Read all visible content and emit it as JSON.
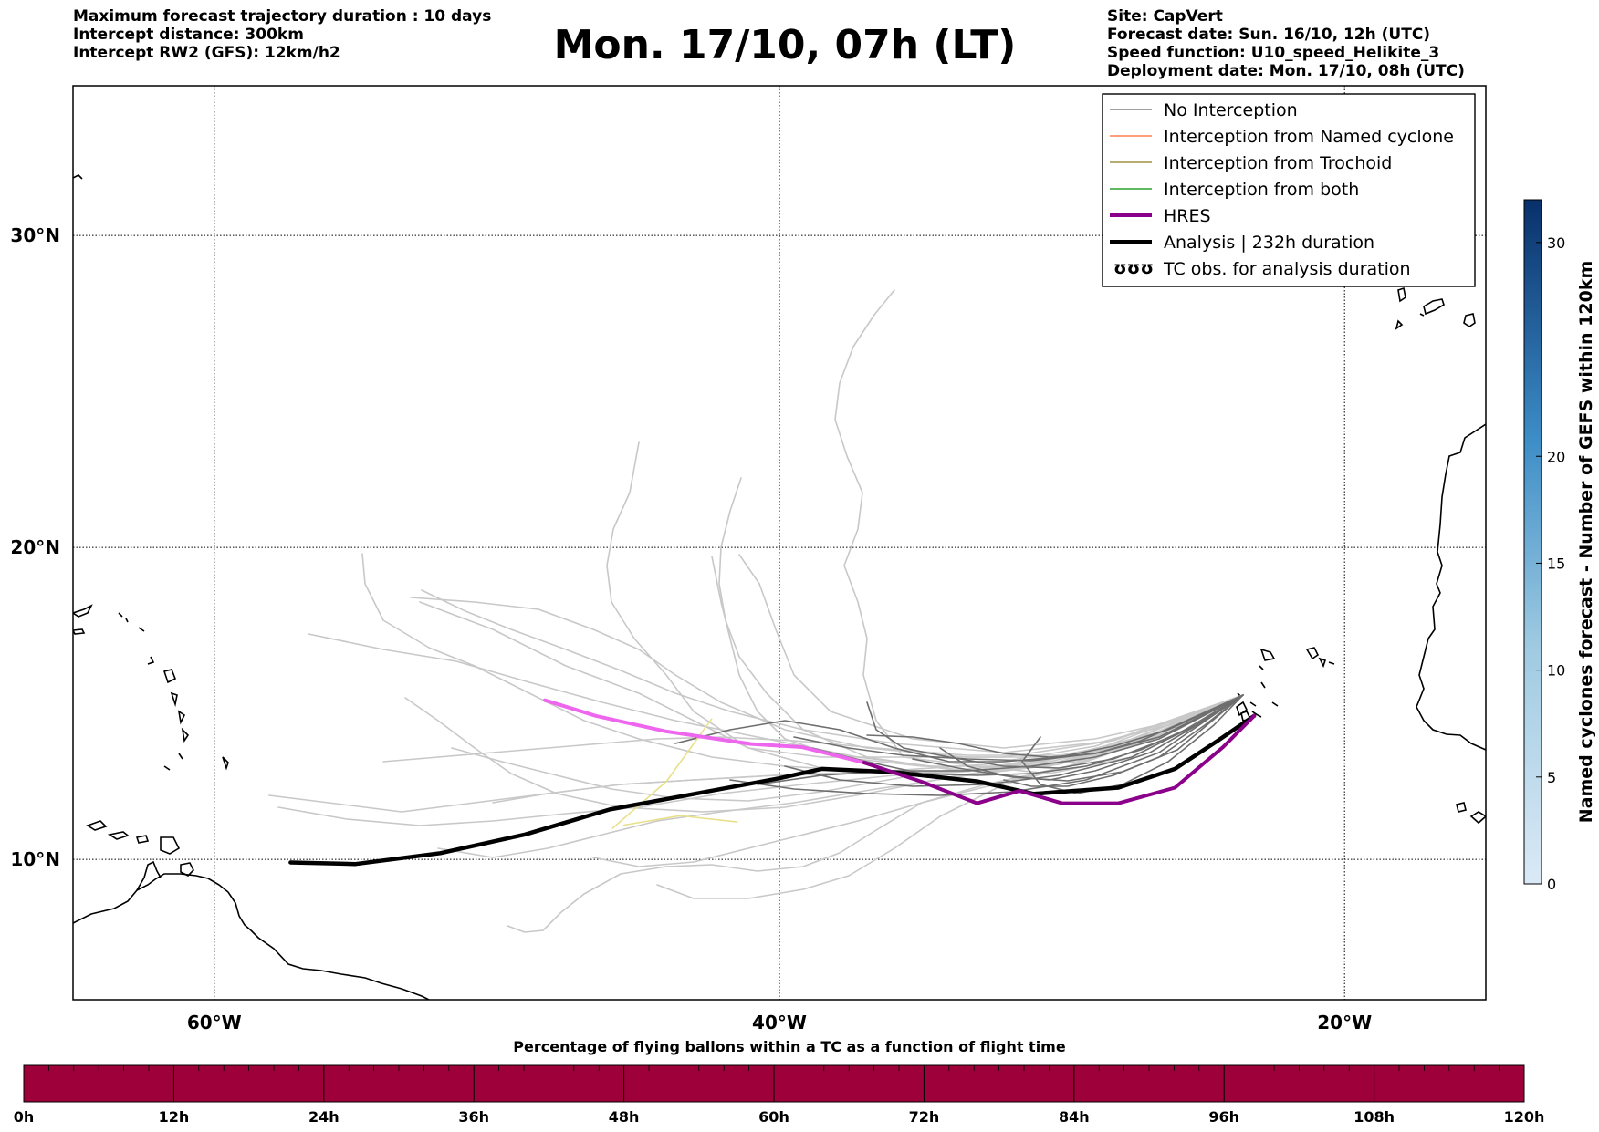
{
  "header": {
    "left_lines": [
      "Maximum forecast trajectory duration : 10 days",
      "Intercept distance: 300km",
      "Intercept RW2 (GFS):  12km/h2"
    ],
    "title": "Mon. 17/10, 07h (LT)",
    "right_lines": [
      "Site: CapVert",
      "Forecast date: Sun. 16/10, 12h (UTC)",
      "Speed function: U10_speed_Helikite_3",
      "Deployment date: Mon. 17/10, 08h (UTC)"
    ]
  },
  "map": {
    "lon_range": [
      -65,
      -15
    ],
    "lat_range": [
      5.5,
      34.8
    ],
    "lat_labels": [
      {
        "lat": 30,
        "text": "30°N"
      },
      {
        "lat": 20,
        "text": "20°N"
      },
      {
        "lat": 10,
        "text": "10°N"
      }
    ],
    "lon_labels": [
      {
        "lon": -60,
        "text": "60°W"
      },
      {
        "lon": -40,
        "text": "40°W"
      },
      {
        "lon": -20,
        "text": "20°W"
      }
    ],
    "grid": true
  },
  "legend": {
    "items": [
      {
        "label": "No Interception",
        "color": "#808080",
        "style": "thin"
      },
      {
        "label": "Interception from Named cyclone",
        "color": "#ff7f50",
        "style": "thin"
      },
      {
        "label": "Interception from Trochoid",
        "color": "#a09040",
        "style": "thin"
      },
      {
        "label": "Interception from both",
        "color": "#2ca02c",
        "style": "thin"
      },
      {
        "label": "HRES",
        "color": "#8b008b",
        "style": "thick"
      },
      {
        "label": "Analysis | 232h duration",
        "color": "#000000",
        "style": "thick"
      },
      {
        "label": "TC obs. for analysis duration",
        "color": "#000000",
        "style": "symbol",
        "symbol": "ʊʊʊ"
      }
    ]
  },
  "colorbar_right": {
    "label": "Named cyclones forecast - Number of GEFS within 120km",
    "ticks": [
      "0",
      "5",
      "10",
      "15",
      "20",
      "30"
    ],
    "tick_values": [
      0,
      5,
      10,
      15,
      20,
      30
    ],
    "max": 32,
    "color_low": "#dbe9f6",
    "color_high": "#08306b"
  },
  "colorbar_bottom": {
    "title": "Percentage of flying ballons within a TC as a function of flight time",
    "ticks": [
      "0h",
      "12h",
      "24h",
      "36h",
      "48h",
      "60h",
      "72h",
      "84h",
      "96h",
      "108h",
      "120h"
    ],
    "fill_color": "#9e003a"
  },
  "tracks": {
    "analysis": [
      [
        -57.3,
        9.9
      ],
      [
        -55,
        9.85
      ],
      [
        -52,
        10.2
      ],
      [
        -49,
        10.8
      ],
      [
        -46,
        11.6
      ],
      [
        -43,
        12.1
      ],
      [
        -40,
        12.6
      ],
      [
        -38.5,
        12.9
      ],
      [
        -36,
        12.8
      ],
      [
        -33,
        12.5
      ],
      [
        -31,
        12.1
      ],
      [
        -28,
        12.3
      ],
      [
        -26,
        12.9
      ],
      [
        -24.5,
        13.8
      ],
      [
        -23.2,
        14.6
      ]
    ],
    "hres": [
      [
        -48.3,
        15.1
      ],
      [
        -46.5,
        14.6
      ],
      [
        -44,
        14.1
      ],
      [
        -41,
        13.7
      ],
      [
        -39.2,
        13.6
      ],
      [
        -37,
        13.1
      ],
      [
        -35,
        12.5
      ],
      [
        -33,
        11.8
      ],
      [
        -31.5,
        12.2
      ],
      [
        -30,
        11.8
      ],
      [
        -28,
        11.8
      ],
      [
        -26,
        12.3
      ],
      [
        -24.3,
        13.6
      ],
      [
        -23.2,
        14.6
      ]
    ],
    "trochoid": [
      [
        -45.9,
        11.0
      ],
      [
        -44,
        12.5
      ],
      [
        -42.4,
        14.5
      ]
    ],
    "trochoid2": [
      [
        -45.5,
        11.1
      ],
      [
        -43.5,
        11.4
      ],
      [
        -41.5,
        11.2
      ]
    ]
  }
}
